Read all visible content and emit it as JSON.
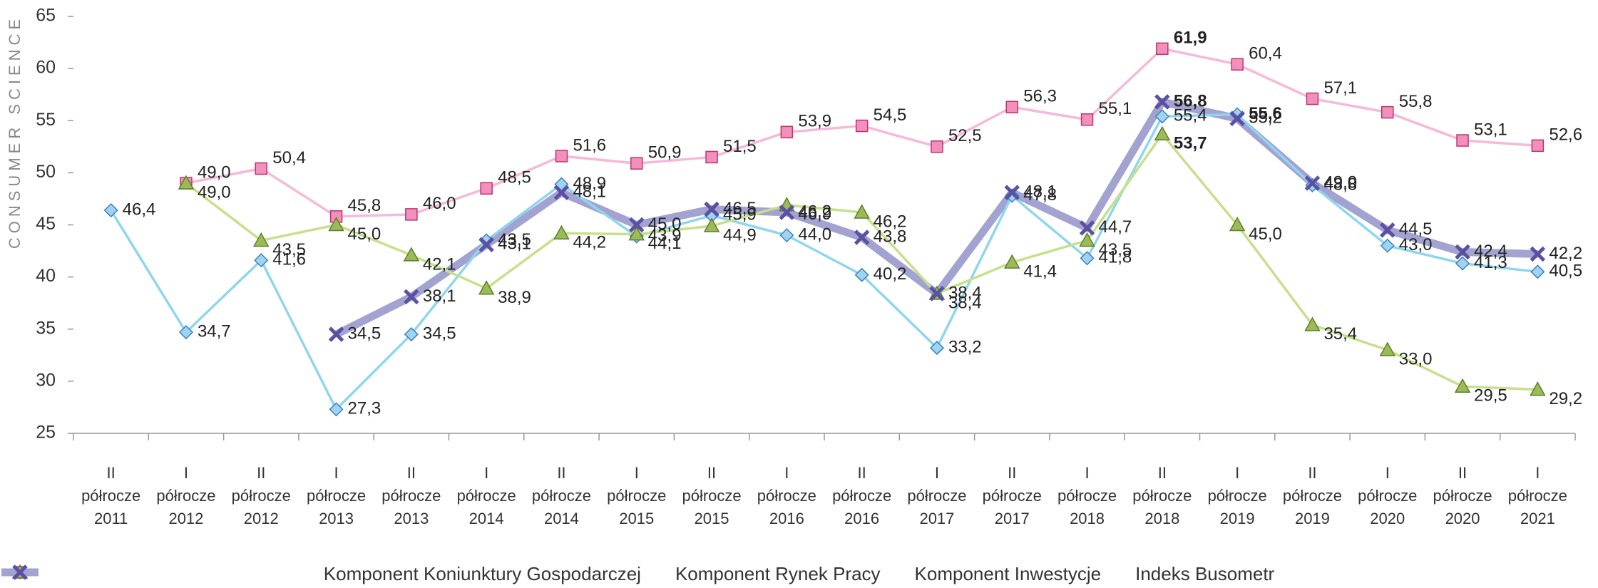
{
  "chart_data": {
    "type": "line",
    "y_label": "CONSUMER SCIENCE",
    "categories": [
      "II półrocze 2011",
      "I półrocze 2012",
      "II półrocze 2012",
      "I półrocze 2013",
      "II półrocze 2013",
      "I półrocze 2014",
      "II półrocze 2014",
      "I półrocze 2015",
      "II półrocze 2015",
      "I półrocze 2016",
      "II półrocze 2016",
      "I półrocze 2017",
      "II półrocze 2017",
      "I półrocze 2018",
      "II półrocze 2018",
      "I półrocze 2019",
      "II półrocze 2019",
      "I półrocze 2020",
      "II półrocze 2020",
      "I półrocze 2021"
    ],
    "ylim": [
      25,
      65
    ],
    "yticks": [
      25,
      30,
      35,
      40,
      45,
      50,
      55,
      60,
      65
    ],
    "grid": false,
    "legend": "bottom",
    "series": [
      {
        "name": "Komponent Koniunktury Gospodarczej",
        "color": "#8fd6ee",
        "marker": "diamond",
        "marker_color": "#9fd3f2",
        "marker_edge": "#3b82bf",
        "values": [
          46.4,
          34.7,
          41.6,
          27.3,
          34.5,
          43.5,
          48.9,
          43.9,
          45.9,
          44.0,
          40.2,
          33.2,
          47.8,
          41.8,
          55.4,
          55.6,
          48.8,
          43.0,
          41.3,
          40.5
        ],
        "value_labels": [
          "46,4",
          "34,7",
          "41,6",
          "27,3",
          "34,5",
          "43,5",
          "48,9",
          "43,9",
          "45,9",
          "44,0",
          "40,2",
          "33,2",
          "47,8",
          "41,8",
          "55,4",
          "55,6",
          "48,8",
          "43,0",
          "41,3",
          "40,5"
        ]
      },
      {
        "name": "Komponent Rynek Pracy",
        "color": "#f6b9d9",
        "marker": "square",
        "marker_color": "#f290bd",
        "marker_edge": "#c1336c",
        "values": [
          null,
          49.0,
          50.4,
          45.8,
          46.0,
          48.5,
          51.6,
          50.9,
          51.5,
          53.9,
          54.5,
          52.5,
          56.3,
          55.1,
          61.9,
          60.4,
          57.1,
          55.8,
          53.1,
          52.6
        ],
        "value_labels": [
          null,
          "49,0",
          "50,4",
          "45,8",
          "46,0",
          "48,5",
          "51,6",
          "50,9",
          "51,5",
          "53,9",
          "54,5",
          "52,5",
          "56,3",
          "55,1",
          "61,9",
          "60,4",
          "57,1",
          "55,8",
          "53,1",
          "52,6"
        ]
      },
      {
        "name": "Komponent Inwestycje",
        "color": "#c6e08c",
        "marker": "triangle",
        "marker_color": "#9bbb59",
        "marker_edge": "#5f7f2a",
        "values": [
          null,
          49.0,
          43.5,
          45.0,
          42.1,
          38.9,
          44.2,
          44.1,
          44.9,
          46.9,
          46.2,
          38.4,
          41.4,
          43.5,
          53.7,
          45.0,
          35.4,
          33.0,
          29.5,
          29.2
        ],
        "value_labels": [
          null,
          "49,0",
          "43,5",
          "45,0",
          "42,1",
          "38,9",
          "44,2",
          "44,1",
          "44,9",
          "46,9",
          "46,2",
          "38,4",
          "41,4",
          "43,5",
          "53,7",
          "45,0",
          "35,4",
          "33,0",
          "29,5",
          "29,2"
        ]
      },
      {
        "name": "Indeks Busometr",
        "color": "#a3a3d2",
        "marker": "x",
        "marker_color": "#5b51a3",
        "marker_edge": "#5b51a3",
        "line_width": 11,
        "values": [
          null,
          null,
          null,
          34.5,
          38.1,
          43.1,
          48.1,
          45.0,
          46.5,
          46.2,
          43.8,
          38.4,
          48.1,
          44.7,
          56.8,
          55.2,
          49.0,
          44.5,
          42.4,
          42.2
        ],
        "value_labels": [
          null,
          null,
          null,
          "34,5",
          "38,1",
          "43,1",
          "48,1",
          "45,0",
          "46,5",
          "46,2",
          "43,8",
          "38,4",
          "48,1",
          "44,7",
          "56,8",
          "55,2",
          "49,0",
          "44,5",
          "42,4",
          "42,2"
        ]
      }
    ]
  }
}
